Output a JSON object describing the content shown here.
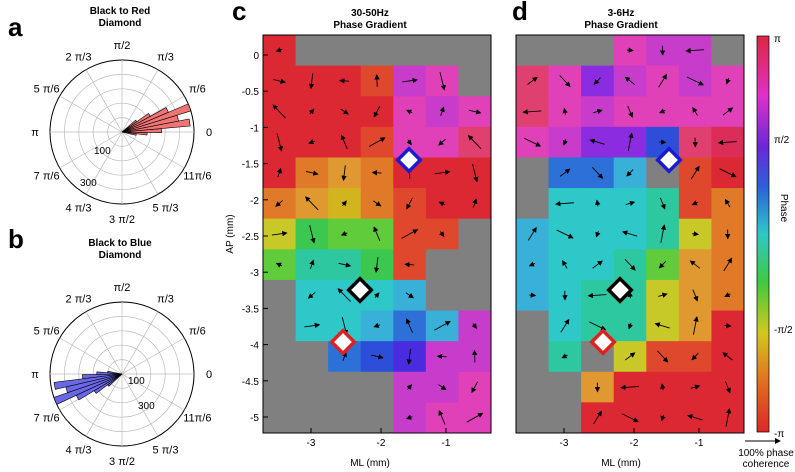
{
  "panels": {
    "a": {
      "letter": "a",
      "title_line1": "Black to Red",
      "title_line2": "Diamond"
    },
    "b": {
      "letter": "b",
      "title_line1": "Black to Blue",
      "title_line2": "Diamond"
    },
    "c": {
      "letter": "c",
      "title_line1": "30-50Hz",
      "title_line2": "Phase Gradient"
    },
    "d": {
      "letter": "d",
      "title_line1": "3-6Hz",
      "title_line2": "Phase Gradient"
    }
  },
  "polar": {
    "angle_labels": [
      "π/2",
      "π/3",
      "π/6",
      "0",
      "11π/6",
      "5 π/3",
      "3 π/2",
      "4 π/3",
      "7 π/6",
      "π",
      "5 π/6",
      "2 π/3"
    ],
    "radial_labels": [
      "100",
      "300"
    ],
    "a_lobe_angle_deg": 8,
    "b_lobe_angle_deg": 190,
    "a_color": "#f07474",
    "b_color": "#6b68e8"
  },
  "maps": {
    "xlabel": "ML (mm)",
    "ylabel": "AP (mm)",
    "x_ticks": [
      "-3",
      "-2",
      "-1"
    ],
    "y_ticks": [
      "0",
      "-0.5",
      "-1",
      "-1.5",
      "-2",
      "-2.5",
      "-3",
      "-3.5",
      "-4",
      "-4.5",
      "-5"
    ],
    "gray": "#808080"
  },
  "colorbar": {
    "label": "Phase",
    "ticks": [
      "π",
      "π/2",
      "-π/2",
      "-π"
    ],
    "note_line1": "100% phase",
    "note_line2": "coherence"
  },
  "chart_data": [
    {
      "type": "heatmap",
      "title": "30-50Hz Phase Gradient",
      "xlabel": "ML (mm)",
      "ylabel": "AP (mm)",
      "xlim": [
        -3.8,
        -0.3
      ],
      "ylim": [
        -5.3,
        0.2
      ]
    },
    {
      "type": "heatmap",
      "title": "3-6Hz Phase Gradient",
      "xlabel": "ML (mm)",
      "ylabel": "AP (mm)",
      "xlim": [
        -3.8,
        -0.3
      ],
      "ylim": [
        -5.3,
        0.2
      ]
    }
  ]
}
